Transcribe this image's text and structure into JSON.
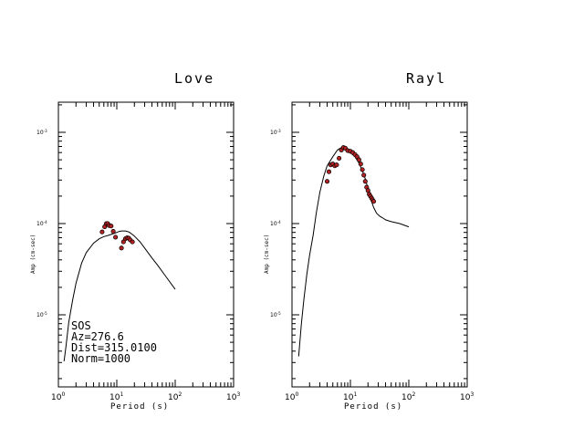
{
  "chart_data": [
    {
      "type": "scatter",
      "title": "Love",
      "xlabel": "Period (s)",
      "ylabel": "Amp (cm-sec)",
      "xscale": "log",
      "yscale": "log",
      "xlim": [
        1,
        1000
      ],
      "ylim": [
        3e-06,
        0.0002
      ],
      "x_tick_labels": [
        "10^0",
        "10^1",
        "10^2",
        "10^3"
      ],
      "y_tick_labels": [
        "10^-5",
        "10^-4",
        "10^-3"
      ],
      "grid": false,
      "annotations": [
        "SOS",
        "Az=276.6",
        "Dist=315.0100",
        "Norm=1000"
      ],
      "series": [
        {
          "kind": "line",
          "x": [
            1.25,
            1.35,
            1.5,
            1.75,
            2.0,
            2.5,
            3,
            4,
            5,
            6,
            7,
            8,
            9,
            10,
            11,
            12,
            13,
            14,
            15,
            16,
            17,
            18,
            20,
            25,
            30,
            40,
            50,
            70,
            100
          ],
          "y": [
            3.1e-06,
            4.5e-06,
            8.2e-06,
            1.45e-05,
            2.22e-05,
            3.7e-05,
            4.8e-05,
            6.1e-05,
            6.8e-05,
            7.2e-05,
            7.4e-05,
            7.6e-05,
            7.8e-05,
            8e-05,
            8.2e-05,
            8.3e-05,
            8.3e-05,
            8.3e-05,
            8.2e-05,
            8.1e-05,
            7.9e-05,
            7.7e-05,
            7.3e-05,
            6.3e-05,
            5.4e-05,
            4.2e-05,
            3.5e-05,
            2.6e-05,
            1.9e-05
          ],
          "color": "#000000"
        },
        {
          "kind": "points",
          "x": [
            5.6,
            6.2,
            6.6,
            7.0,
            7.4,
            8.0,
            8.7,
            9.5,
            12.0,
            13.0,
            14.0,
            15.0,
            16.0,
            17.0,
            18.5
          ],
          "y": [
            8.1e-05,
            9.2e-05,
            0.0001,
            0.0001,
            9.5e-05,
            9.4e-05,
            8.2e-05,
            7.1e-05,
            5.4e-05,
            6.3e-05,
            6.8e-05,
            7e-05,
            6.9e-05,
            6.6e-05,
            6.3e-05
          ],
          "color": "#b22222"
        }
      ]
    },
    {
      "type": "scatter",
      "title": "Rayl",
      "xlabel": "Period (s)",
      "ylabel": "Amp (cm-sec)",
      "xscale": "log",
      "yscale": "log",
      "xlim": [
        1,
        1000
      ],
      "ylim": [
        3.5e-06,
        0.0026
      ],
      "x_tick_labels": [
        "10^0",
        "10^1",
        "10^2",
        "10^3"
      ],
      "y_tick_labels": [
        "10^-5",
        "10^-4",
        "10^-3"
      ],
      "grid": false,
      "series": [
        {
          "kind": "line",
          "x": [
            1.3,
            1.45,
            1.6,
            1.8,
            2.0,
            2.3,
            2.6,
            3.0,
            3.5,
            4.0,
            5.0,
            6.0,
            7.0,
            8.0,
            9.0,
            10.0,
            12.0,
            14.0,
            16.0,
            18.0,
            20.0,
            22.0,
            25.0,
            28.0,
            32.0,
            36.0,
            40.0,
            50.0,
            70.0,
            100.0
          ],
          "y": [
            3.5e-06,
            8e-06,
            1.5e-05,
            2.8e-05,
            4.5e-05,
            7.5e-05,
            0.00013,
            0.00022,
            0.00033,
            0.00043,
            0.00054,
            0.00064,
            0.00068,
            0.00067,
            0.00064,
            0.0006,
            0.00054,
            0.00046,
            0.00038,
            0.00031,
            0.00024,
            0.00019,
            0.00015,
            0.00013,
            0.00012,
            0.000115,
            0.00011,
            0.000105,
            0.0001,
            9.2e-05
          ],
          "color": "#000000"
        },
        {
          "kind": "points",
          "x": [
            4.0,
            4.3,
            4.6,
            5.0,
            5.4,
            5.8,
            6.4,
            7.0,
            7.6,
            8.2,
            9.0,
            10.0,
            11.0,
            12.0,
            13.0,
            14.0,
            15.0,
            16.0,
            17.0,
            18.0,
            19.0,
            20.0,
            21.0,
            22.0,
            23.0,
            24.0,
            25.0
          ],
          "y": [
            0.00029,
            0.00037,
            0.00044,
            0.00045,
            0.00043,
            0.00044,
            0.00052,
            0.00064,
            0.00068,
            0.00067,
            0.00063,
            0.00062,
            0.0006,
            0.00057,
            0.00054,
            0.0005,
            0.00045,
            0.00039,
            0.00034,
            0.00029,
            0.00025,
            0.00023,
            0.00021,
            0.0002,
            0.00019,
            0.000182,
            0.000175
          ],
          "color": "#b22222"
        }
      ]
    }
  ]
}
